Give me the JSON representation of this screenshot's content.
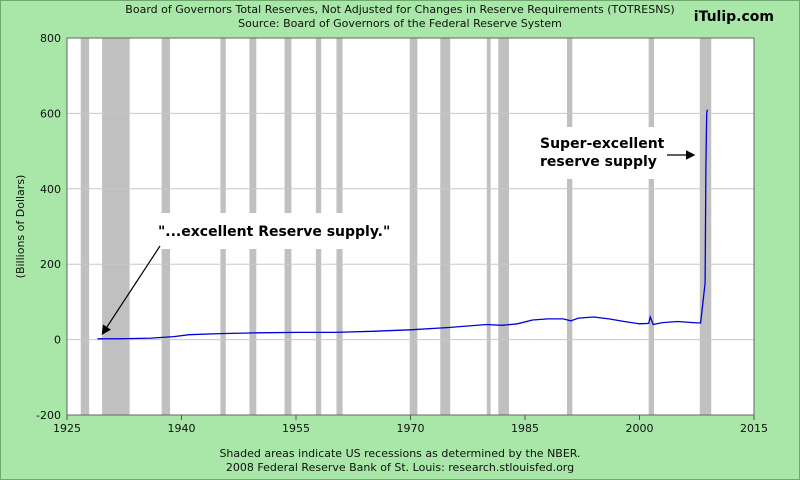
{
  "header": {
    "title_line1": "Board of Governors Total Reserves, Not Adjusted for Changes in Reserve Requirements (TOTRESNS)",
    "title_line2": "Source: Board of Governors of the Federal Reserve System",
    "brand": "iTulip.com"
  },
  "footer": {
    "line1": "Shaded areas indicate US recessions as determined by the NBER.",
    "line2": "2008 Federal Reserve Bank of St. Louis: research.stlouisfed.org"
  },
  "annotations": {
    "left": "\"...excellent Reserve supply.\"",
    "right_line1": "Super-excellent",
    "right_line2": "reserve supply"
  },
  "colors": {
    "background": "#a8e7a8",
    "plot": "#ffffff",
    "recession": "#c0c0c0",
    "series": "#0000dd",
    "grid": "#c8c8c8"
  },
  "chart_data": {
    "type": "line",
    "title": "Board of Governors Total Reserves, Not Adjusted for Changes in Reserve Requirements (TOTRESNS)",
    "subtitle": "Source: Board of Governors of the Federal Reserve System",
    "xlabel": "",
    "ylabel": "(Billions of Dollars)",
    "xlim": [
      1925,
      2015
    ],
    "ylim": [
      -200,
      800
    ],
    "x_ticks": [
      1925,
      1940,
      1955,
      1970,
      1985,
      2000,
      2015
    ],
    "y_ticks": [
      -200,
      0,
      200,
      400,
      600,
      800
    ],
    "grid": true,
    "recessions": [
      [
        1926.8,
        1927.9
      ],
      [
        1929.6,
        1933.2
      ],
      [
        1937.4,
        1938.5
      ],
      [
        1945.1,
        1945.8
      ],
      [
        1948.9,
        1949.8
      ],
      [
        1953.5,
        1954.4
      ],
      [
        1957.6,
        1958.3
      ],
      [
        1960.3,
        1961.1
      ],
      [
        1969.9,
        1970.9
      ],
      [
        1973.9,
        1975.2
      ],
      [
        1980.0,
        1980.5
      ],
      [
        1981.5,
        1982.9
      ],
      [
        1990.5,
        1991.2
      ],
      [
        2001.2,
        2001.9
      ],
      [
        2007.9,
        2009.4
      ]
    ],
    "series": [
      {
        "x": [
          1929.0,
          1932.0,
          1936.0,
          1939.0,
          1941.0,
          1945.0,
          1950.0,
          1955.0,
          1960.0,
          1965.0,
          1970.0,
          1975.0,
          1980.0,
          1982.0,
          1984.0,
          1986.0,
          1988.0,
          1990.0,
          1991.0,
          1992.0,
          1994.0,
          1996.0,
          1998.0,
          2000.0,
          2001.2,
          2001.4,
          2001.8,
          2003.0,
          2005.0,
          2007.0,
          2008.0,
          2008.6,
          2008.7,
          2008.8,
          2008.9
        ],
        "y": [
          2,
          2,
          4,
          8,
          13,
          16,
          18,
          19,
          19,
          22,
          26,
          32,
          40,
          38,
          42,
          52,
          55,
          55,
          50,
          57,
          60,
          55,
          48,
          42,
          43,
          60,
          40,
          45,
          48,
          45,
          44,
          150,
          460,
          600,
          610
        ]
      }
    ]
  }
}
